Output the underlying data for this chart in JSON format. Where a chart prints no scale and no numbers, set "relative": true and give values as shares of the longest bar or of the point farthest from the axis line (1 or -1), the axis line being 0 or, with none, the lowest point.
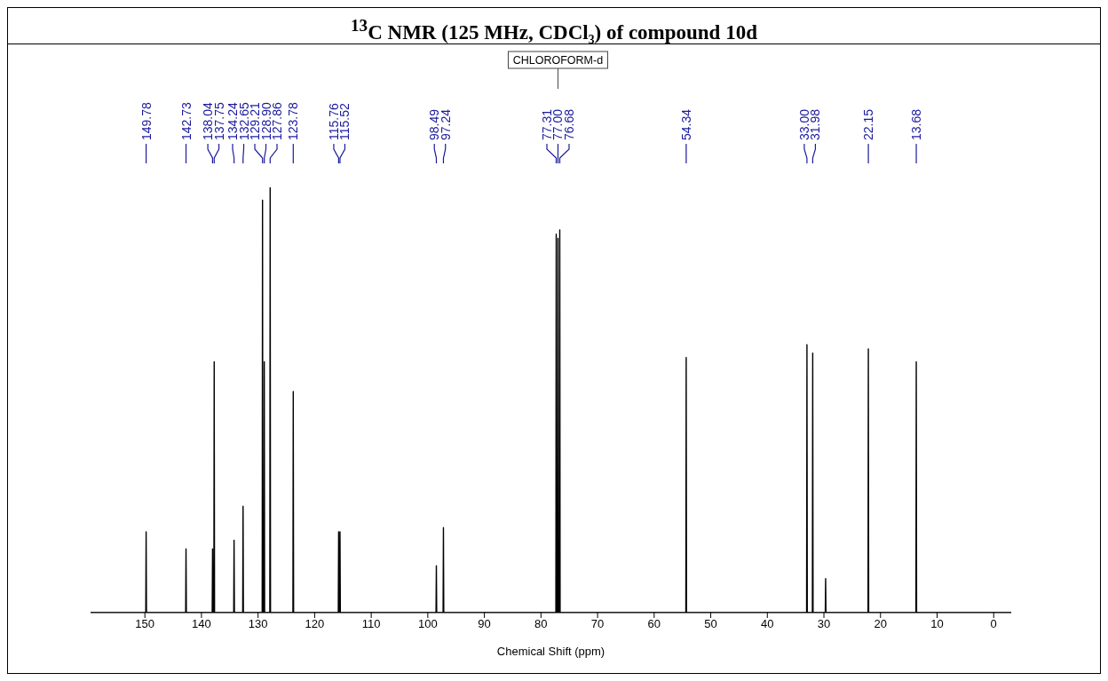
{
  "chart_data": {
    "type": "line",
    "title": "$^{13}$C NMR (125 MHz, CDCl₃) of compound 10d",
    "xlabel": "Chemical Shift (ppm)",
    "relative": true,
    "xlim": [
      159.6,
      -3.1
    ],
    "xticks": [
      150,
      140,
      130,
      120,
      110,
      100,
      90,
      80,
      70,
      60,
      50,
      40,
      30,
      20,
      10,
      0
    ],
    "series": [
      {
        "color": "#000000",
        "x": [
          159.6,
          149.84,
          149.78,
          149.72,
          142.79,
          142.73,
          142.67,
          138.1,
          138.04,
          137.98,
          137.81,
          137.75,
          137.69,
          134.3,
          134.24,
          134.18,
          132.71,
          132.65,
          132.59,
          129.27,
          129.21,
          129.15,
          128.96,
          128.9,
          128.84,
          127.92,
          127.86,
          127.8,
          123.84,
          123.78,
          123.72,
          115.82,
          115.76,
          115.7,
          115.58,
          115.52,
          115.46,
          98.55,
          98.49,
          98.43,
          97.3,
          97.24,
          97.18,
          77.37,
          77.31,
          77.25,
          77.06,
          77.0,
          76.94,
          76.74,
          76.68,
          76.62,
          54.4,
          54.34,
          54.28,
          33.06,
          33.0,
          32.94,
          32.04,
          31.98,
          31.92,
          29.76,
          29.7,
          29.64,
          22.21,
          22.15,
          22.09,
          13.74,
          13.68,
          13.62,
          -3.1
        ],
        "values": [
          0,
          0,
          0.19,
          0,
          0,
          0.15,
          0,
          0,
          0.15,
          0,
          0,
          0.59,
          0,
          0,
          0.17,
          0,
          0,
          0.25,
          0,
          0,
          0.97,
          0,
          0,
          0.59,
          0,
          0,
          1,
          0,
          0,
          0.52,
          0,
          0,
          0.19,
          0,
          0,
          0.19,
          0,
          0,
          0.11,
          0,
          0,
          0.2,
          0,
          0,
          0.89,
          0,
          0,
          0.88,
          0,
          0,
          0.9,
          0,
          0,
          0.6,
          0,
          0,
          0.63,
          0,
          0,
          0.61,
          0,
          0,
          0.08,
          0,
          0,
          0.62,
          0,
          0,
          0.59,
          0,
          0
        ]
      }
    ],
    "annotations": [
      {
        "text": "149.78",
        "x": 149.78
      },
      {
        "text": "142.73",
        "x": 142.73
      },
      {
        "text": "138.04",
        "x": 138.04
      },
      {
        "text": "137.75",
        "x": 137.75
      },
      {
        "text": "134.24",
        "x": 134.24
      },
      {
        "text": "132.65",
        "x": 132.65
      },
      {
        "text": "129.21",
        "x": 129.21
      },
      {
        "text": "128.90",
        "x": 128.9
      },
      {
        "text": "127.86",
        "x": 127.86
      },
      {
        "text": "123.78",
        "x": 123.78
      },
      {
        "text": "115.76",
        "x": 115.76
      },
      {
        "text": "115.52",
        "x": 115.52
      },
      {
        "text": "98.49",
        "x": 98.49
      },
      {
        "text": "97.24",
        "x": 97.24
      },
      {
        "text": "77.31",
        "x": 77.31
      },
      {
        "text": "77.00",
        "x": 77.0
      },
      {
        "text": "76.68",
        "x": 76.68
      },
      {
        "text": "54.34",
        "x": 54.34
      },
      {
        "text": "33.00",
        "x": 33.0
      },
      {
        "text": "31.98",
        "x": 31.98
      },
      {
        "text": "22.15",
        "x": 22.15
      },
      {
        "text": "13.68",
        "x": 13.68
      },
      {
        "text": "CHLOROFORM-d",
        "x": 77.0
      }
    ]
  }
}
